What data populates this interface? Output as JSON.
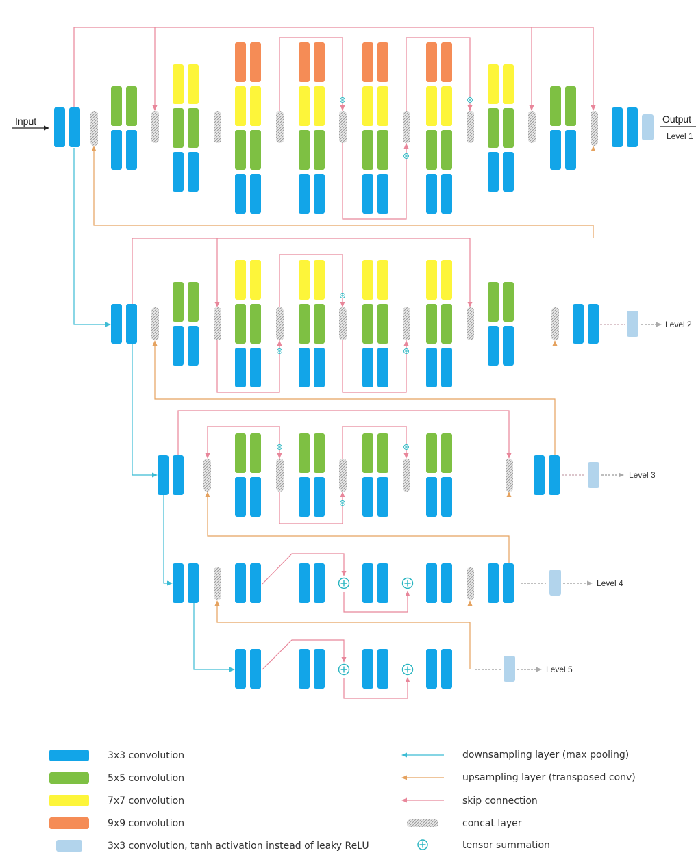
{
  "io": {
    "input_label": "Input",
    "output_label": "Output"
  },
  "levels": {
    "l1": "Level 1",
    "l2": "Level 2",
    "l3": "Level 3",
    "l4": "Level 4",
    "l5": "Level 5"
  },
  "colors": {
    "conv3": "#12a5e8",
    "conv5": "#7ec043",
    "conv7": "#fdf53a",
    "conv9": "#f58c56",
    "tanh": "#b2d4ec",
    "down": "#3cbcd4",
    "up": "#e5a25f",
    "skip": "#e8869a",
    "concat": "#9a9a9a",
    "sum": "#27b4c0"
  },
  "legend": {
    "conv3": "3x3 convolution",
    "conv5": "5x5 convolution",
    "conv7": "7x7 convolution",
    "conv9": "9x9 convolution",
    "tanh": "3x3 convolution, tanh activation instead of leaky ReLU",
    "down": "downsampling layer (max pooling)",
    "up": "upsampling layer (transposed conv)",
    "skip": "skip connection",
    "concat": "concat layer",
    "sum": "tensor summation"
  }
}
